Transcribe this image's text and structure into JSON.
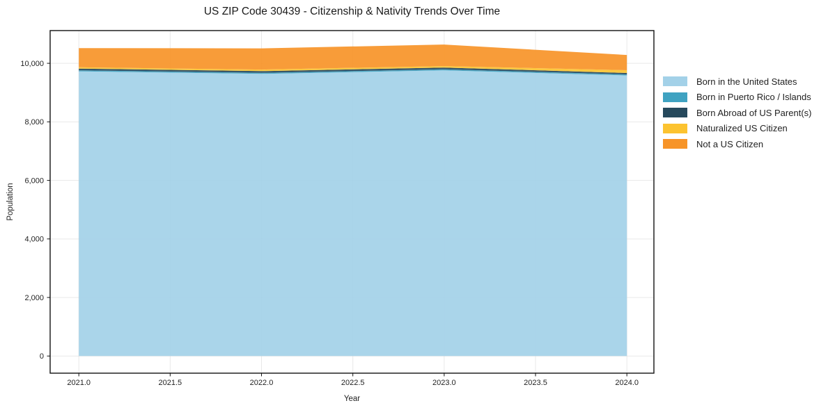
{
  "header": {
    "title": "US ZIP Code 30439 - Citizenship & Nativity Trends Over Time"
  },
  "chart_data": {
    "type": "area",
    "stacked": true,
    "title": "US ZIP Code 30439 - Citizenship & Nativity Trends Over Time",
    "xlabel": "Year",
    "ylabel": "Population",
    "x": [
      2021,
      2022,
      2023,
      2024
    ],
    "series": [
      {
        "name": "Born in the United States",
        "color": "#a3d1e8",
        "values": [
          9725,
          9640,
          9760,
          9585
        ]
      },
      {
        "name": "Born in Puerto Rico / Islands",
        "color": "#3fa2c1",
        "values": [
          35,
          35,
          35,
          35
        ]
      },
      {
        "name": "Born Abroad of US Parent(s)",
        "color": "#26495c",
        "values": [
          60,
          60,
          60,
          50
        ]
      },
      {
        "name": "Naturalized US Citizen",
        "color": "#fcc330",
        "values": [
          45,
          50,
          50,
          95
        ]
      },
      {
        "name": "Not a US Citizen",
        "color": "#f79428",
        "values": [
          655,
          725,
          735,
          520
        ]
      }
    ],
    "totals": [
      10520,
      10510,
      10640,
      10285
    ],
    "xtick_values": [
      2021.0,
      2021.5,
      2022.0,
      2022.5,
      2023.0,
      2023.5,
      2024.0
    ],
    "xtick_labels": [
      "2021.0",
      "2021.5",
      "2022.0",
      "2022.5",
      "2023.0",
      "2023.5",
      "2024.0"
    ],
    "ytick_values": [
      0,
      2000,
      4000,
      6000,
      8000,
      10000
    ],
    "ytick_labels": [
      "0",
      "2,000",
      "4,000",
      "6,000",
      "8,000",
      "10,000"
    ],
    "xlim": [
      2020.843,
      2024.148
    ],
    "ylim": [
      -586,
      11118
    ],
    "grid": true,
    "legend_position": "right-outside",
    "colors": {
      "grid": "#dcdcdc",
      "spine": "#111111",
      "text": "#1f1f1f",
      "background": "#ffffff"
    }
  }
}
